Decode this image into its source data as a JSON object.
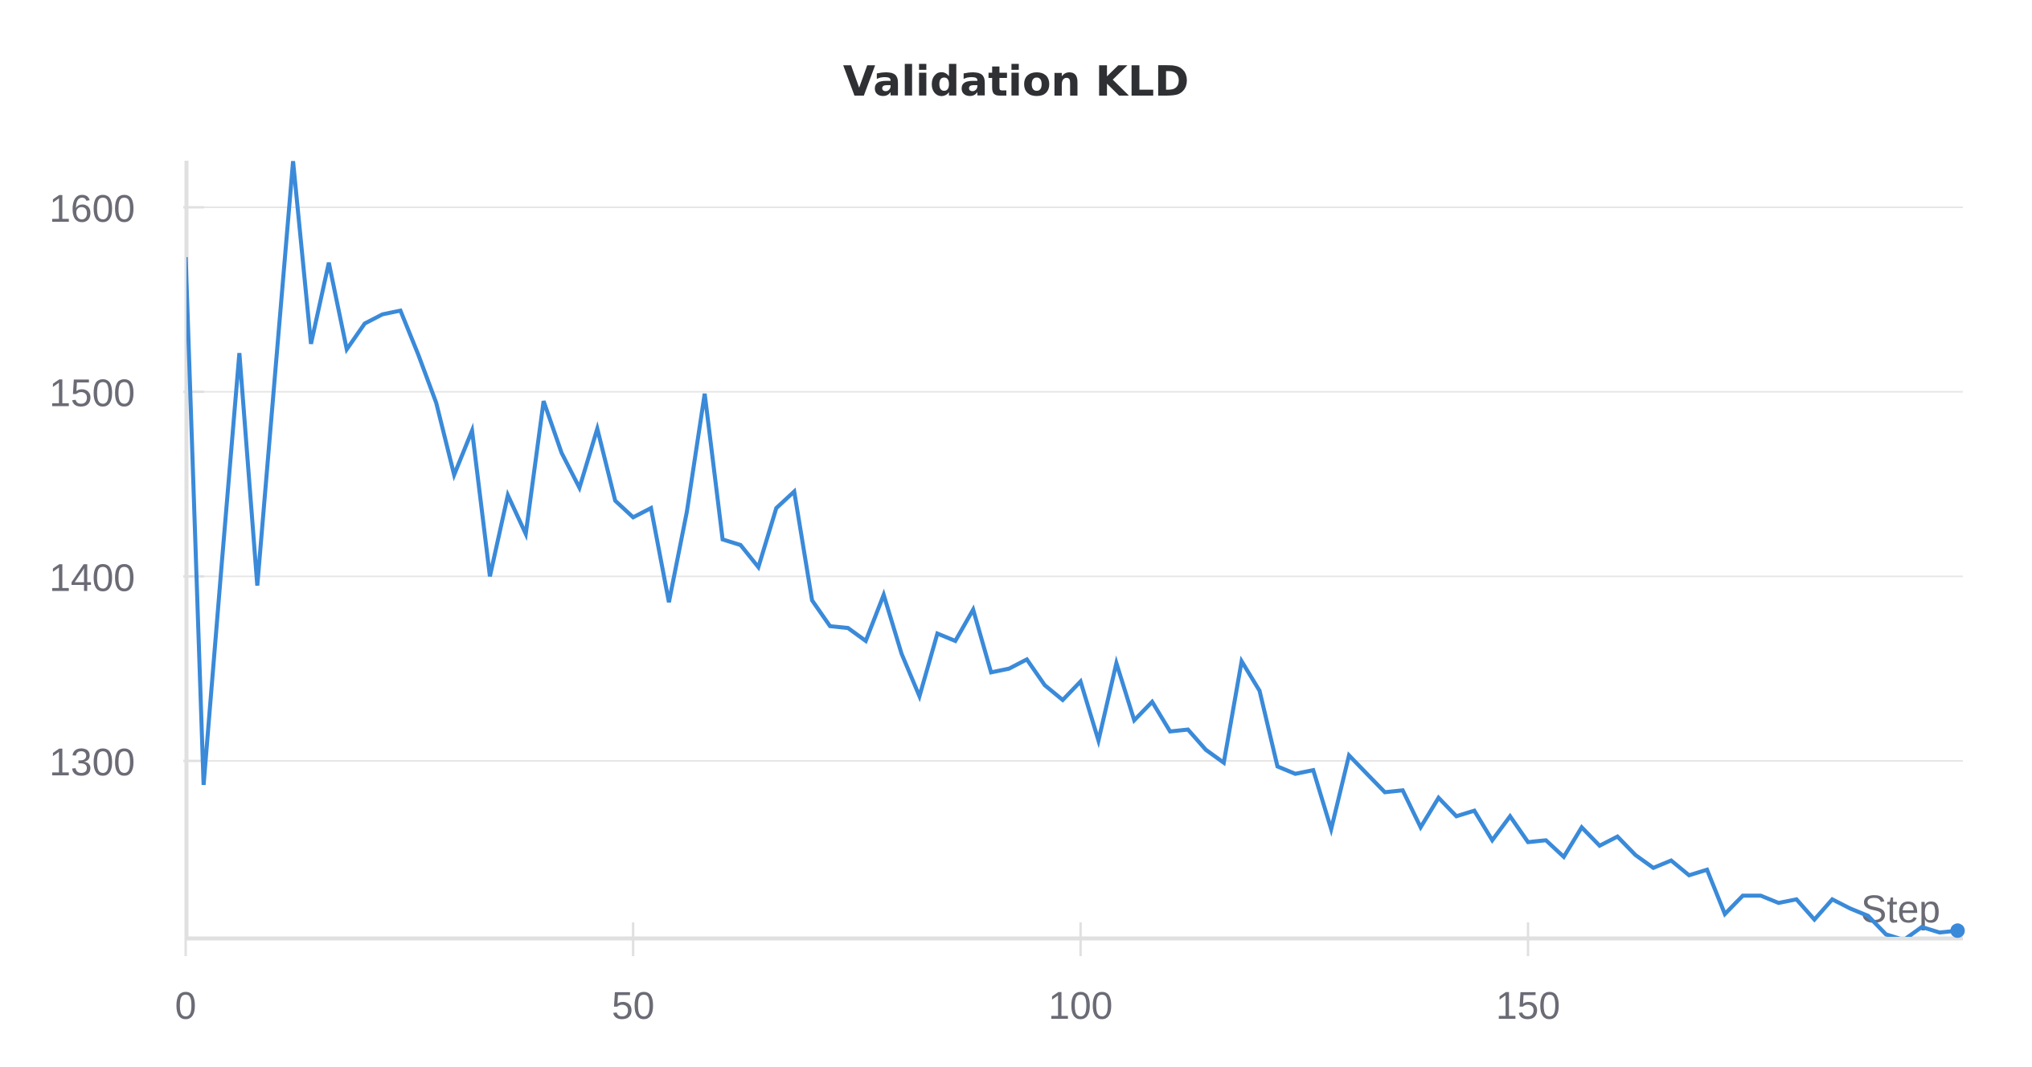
{
  "chart_data": {
    "type": "line",
    "title": "Validation KLD",
    "xlabel": "Step",
    "ylabel": "",
    "x_ticks": [
      "0",
      "50",
      "100",
      "150"
    ],
    "y_ticks": [
      "1300",
      "1400",
      "1500",
      "1600"
    ],
    "xlim": [
      0,
      198
    ],
    "ylim": [
      1203,
      1625
    ],
    "grid": true,
    "legend": "none",
    "colors": {
      "line": "#3a8ad9",
      "grid": "#e6e6e6",
      "axis": "#e0e0e0",
      "tick_text": "#6b6b76"
    },
    "series": [
      {
        "x": [
          0,
          2,
          4,
          6,
          8,
          10,
          12,
          14,
          16,
          18,
          20,
          22,
          24,
          26,
          28,
          30,
          32,
          34,
          36,
          38,
          40,
          42,
          44,
          46,
          48,
          50,
          52,
          54,
          56,
          58,
          60,
          62,
          64,
          66,
          68,
          70,
          72,
          74,
          76,
          78,
          80,
          82,
          84,
          86,
          88,
          90,
          92,
          94,
          96,
          98,
          100,
          102,
          104,
          106,
          108,
          110,
          112,
          114,
          116,
          118,
          120,
          122,
          124,
          126,
          128,
          130,
          132,
          134,
          136,
          138,
          140,
          142,
          144,
          146,
          148,
          150,
          152,
          154,
          156,
          158,
          160,
          162,
          164,
          166,
          168,
          170,
          172,
          174,
          176,
          178,
          180,
          182,
          184,
          186,
          188,
          190,
          192,
          194,
          196,
          198
        ],
        "values": [
          1573,
          1287,
          1405,
          1521,
          1395,
          1510,
          1625,
          1526,
          1570,
          1523,
          1537,
          1542,
          1544,
          1520,
          1494,
          1455,
          1479,
          1400,
          1444,
          1423,
          1495,
          1467,
          1448,
          1480,
          1441,
          1432,
          1437,
          1386,
          1435,
          1499,
          1420,
          1417,
          1405,
          1437,
          1446,
          1387,
          1373,
          1372,
          1365,
          1390,
          1358,
          1335,
          1369,
          1365,
          1382,
          1348,
          1350,
          1355,
          1341,
          1333,
          1343,
          1311,
          1353,
          1322,
          1332,
          1316,
          1317,
          1306,
          1299,
          1354,
          1338,
          1297,
          1293,
          1295,
          1263,
          1303,
          1293,
          1283,
          1284,
          1264,
          1280,
          1270,
          1273,
          1257,
          1270,
          1256,
          1257,
          1248,
          1264,
          1254,
          1259,
          1249,
          1242,
          1246,
          1238,
          1241,
          1217,
          1227,
          1227,
          1223,
          1225,
          1214,
          1225,
          1220,
          1216,
          1206,
          1203,
          1210,
          1207,
          1208
        ]
      }
    ]
  }
}
